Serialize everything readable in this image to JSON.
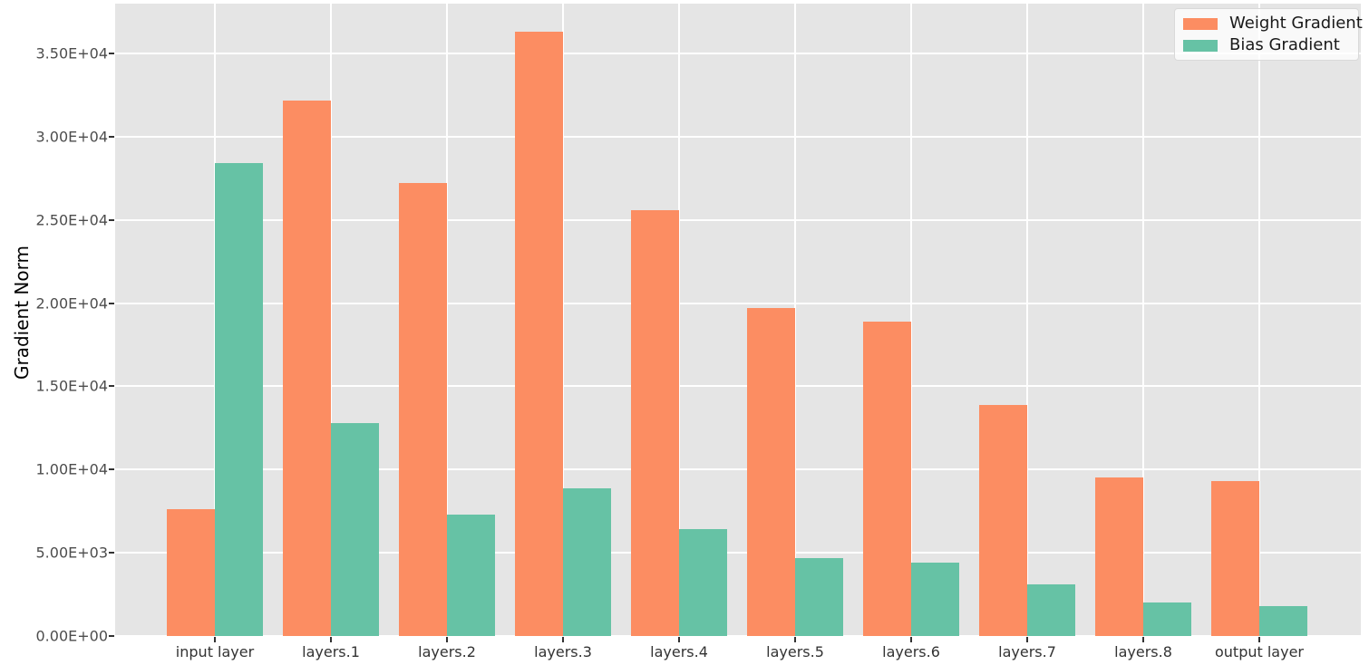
{
  "chart_data": {
    "type": "bar",
    "title": "",
    "xlabel": "",
    "ylabel": "Gradient Norm",
    "categories": [
      "input layer",
      "layers.1",
      "layers.2",
      "layers.3",
      "layers.4",
      "layers.5",
      "layers.6",
      "layers.7",
      "layers.8",
      "output layer"
    ],
    "series": [
      {
        "name": "Weight Gradient",
        "color": "#FC8D62",
        "values": [
          7600,
          32200,
          27200,
          36300,
          25600,
          19700,
          18900,
          13900,
          9500,
          9300
        ]
      },
      {
        "name": "Bias Gradient",
        "color": "#66C2A5",
        "values": [
          28400,
          12800,
          7300,
          8900,
          6400,
          4700,
          4400,
          3100,
          2000,
          1800
        ]
      }
    ],
    "y_tick_labels": [
      "0.00E+00",
      "5.00E+03",
      "1.00E+04",
      "1.50E+04",
      "2.00E+04",
      "2.50E+04",
      "3.00E+04",
      "3.50E+04"
    ],
    "y_tick_values": [
      0,
      5000,
      10000,
      15000,
      20000,
      25000,
      30000,
      35000
    ],
    "ylim": [
      0,
      38000
    ],
    "grid": true,
    "legend_position": "upper right"
  },
  "style": {
    "plot_bg": "#E5E5E5",
    "grid_color": "#FFFFFF",
    "y_tick_label_color": "#4D4D4D",
    "x_tick_label_color": "#333333",
    "axis_title_color": "#000000",
    "legend_text_color": "#1A1A1A",
    "weight_gradient_color": "#FC8D62",
    "bias_gradient_color": "#66C2A5"
  }
}
